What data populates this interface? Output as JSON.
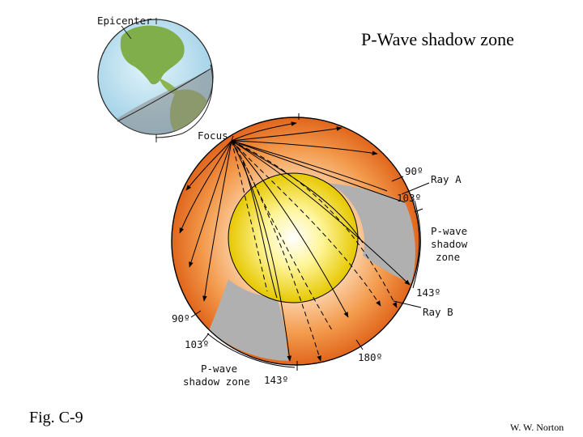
{
  "title": "P-Wave shadow zone",
  "figure_label": "Fig. C-9",
  "credit": "W. W. Norton",
  "labels": {
    "epicenter": "Epicenter",
    "focus": "Focus",
    "ray_a": "Ray A",
    "ray_b": "Ray B",
    "angle_90_right": "90º",
    "angle_103_right": "103º",
    "angle_143_right": "143º",
    "angle_90_left": "90º",
    "angle_103_left": "103º",
    "angle_143_bottom": "143º",
    "angle_180": "180º",
    "shadow_right_1": "P-wave",
    "shadow_right_2": "shadow",
    "shadow_right_3": "zone",
    "shadow_bottom_1": "P-wave",
    "shadow_bottom_2": "shadow zone"
  },
  "colors": {
    "mantle_outer": "#e06a1e",
    "mantle_inner": "#fbd2a8",
    "core_center": "#ffffff",
    "core_edge": "#e8d000",
    "shadow_zone": "#b0b0b0",
    "ocean": "#bfe3f2",
    "land": "#7fae4a"
  }
}
